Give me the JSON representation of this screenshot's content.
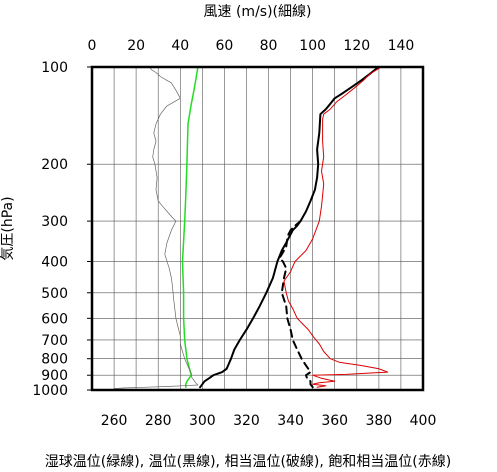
{
  "chart_data": {
    "type": "line",
    "title": "",
    "top_axis_label": "風速 (m/s)(細線)",
    "bottom_axis_label": "湿球温位(緑線), 温位(黒線), 相当温位(破線), 飽和相当温位(赤線)",
    "ylabel": "気圧(hPa)",
    "y_scale": "log",
    "y_inverted": true,
    "ylim": [
      1000,
      100
    ],
    "y_ticks": [
      100,
      200,
      300,
      400,
      500,
      600,
      700,
      800,
      900,
      1000
    ],
    "top_xlim": [
      0,
      150
    ],
    "top_x_ticks": [
      0,
      20,
      40,
      60,
      80,
      100,
      120,
      140
    ],
    "bottom_xlim": [
      250,
      400
    ],
    "bottom_x_ticks": [
      260,
      280,
      300,
      320,
      340,
      360,
      380,
      400
    ],
    "grid": true,
    "series": [
      {
        "name": "湿球温位",
        "axis": "bottom",
        "color": "#22dd22",
        "style": "solid",
        "width": 1.5,
        "points": [
          [
            292.5,
            980
          ],
          [
            292.5,
            960
          ],
          [
            293,
            940
          ],
          [
            294,
            920
          ],
          [
            295,
            900
          ],
          [
            294,
            850
          ],
          [
            293,
            800
          ],
          [
            292,
            700
          ],
          [
            291.5,
            600
          ],
          [
            291.5,
            500
          ],
          [
            291,
            400
          ],
          [
            292,
            300
          ],
          [
            292.5,
            250
          ],
          [
            293,
            200
          ],
          [
            293.5,
            150
          ],
          [
            295,
            130
          ],
          [
            296,
            120
          ],
          [
            297,
            110
          ],
          [
            298,
            100
          ]
        ]
      },
      {
        "name": "温位",
        "axis": "bottom",
        "color": "#000000",
        "style": "solid",
        "width": 2,
        "points": [
          [
            299,
            980
          ],
          [
            300,
            960
          ],
          [
            301,
            940
          ],
          [
            303,
            920
          ],
          [
            305,
            900
          ],
          [
            309,
            880
          ],
          [
            311,
            860
          ],
          [
            312,
            830
          ],
          [
            313,
            800
          ],
          [
            314.5,
            750
          ],
          [
            317,
            700
          ],
          [
            320,
            650
          ],
          [
            323,
            600
          ],
          [
            326,
            550
          ],
          [
            329,
            500
          ],
          [
            332,
            450
          ],
          [
            334,
            400
          ],
          [
            336,
            370
          ],
          [
            338,
            350
          ],
          [
            341,
            320
          ],
          [
            343,
            310
          ],
          [
            344.5,
            300
          ],
          [
            347,
            280
          ],
          [
            349,
            260
          ],
          [
            351,
            240
          ],
          [
            352,
            220
          ],
          [
            352.5,
            200
          ],
          [
            352,
            180
          ],
          [
            353,
            160
          ],
          [
            353.5,
            140
          ],
          [
            356,
            135
          ],
          [
            358,
            130
          ],
          [
            360,
            125
          ],
          [
            364,
            120
          ],
          [
            368,
            115
          ],
          [
            372,
            110
          ],
          [
            376,
            105
          ],
          [
            379,
            101
          ],
          [
            380,
            100
          ]
        ]
      },
      {
        "name": "相当温位",
        "axis": "bottom",
        "color": "#000000",
        "style": "dashed",
        "width": 2,
        "points": [
          [
            350,
            980
          ],
          [
            349,
            960
          ],
          [
            349,
            940
          ],
          [
            347.5,
            920
          ],
          [
            347,
            900
          ],
          [
            349,
            880
          ],
          [
            348,
            860
          ],
          [
            347,
            840
          ],
          [
            345,
            800
          ],
          [
            343,
            750
          ],
          [
            341,
            700
          ],
          [
            340,
            650
          ],
          [
            338.5,
            600
          ],
          [
            338,
            550
          ],
          [
            336,
            500
          ],
          [
            337,
            450
          ],
          [
            338,
            420
          ],
          [
            336.5,
            400
          ],
          [
            335,
            390
          ],
          [
            336,
            380
          ],
          [
            337,
            370
          ],
          [
            338,
            360
          ],
          [
            338.5,
            340
          ],
          [
            339,
            330
          ],
          [
            340,
            320
          ],
          [
            342,
            310
          ],
          [
            344.5,
            300
          ]
        ]
      },
      {
        "name": "飽和相当温位",
        "axis": "bottom",
        "color": "#dd0000",
        "style": "solid",
        "width": 1,
        "points": [
          [
            352,
            980
          ],
          [
            356,
            970
          ],
          [
            350,
            960
          ],
          [
            353,
            950
          ],
          [
            360,
            940
          ],
          [
            354,
            920
          ],
          [
            350,
            900
          ],
          [
            365,
            895
          ],
          [
            384,
            880
          ],
          [
            380,
            860
          ],
          [
            372,
            840
          ],
          [
            362,
            820
          ],
          [
            358,
            800
          ],
          [
            355,
            760
          ],
          [
            353,
            720
          ],
          [
            350,
            680
          ],
          [
            348,
            650
          ],
          [
            345,
            620
          ],
          [
            343,
            600
          ],
          [
            341,
            560
          ],
          [
            339,
            530
          ],
          [
            338,
            500
          ],
          [
            337,
            460
          ],
          [
            340,
            430
          ],
          [
            342,
            400
          ],
          [
            347,
            370
          ],
          [
            350,
            340
          ],
          [
            353,
            300
          ],
          [
            354,
            270
          ],
          [
            354.5,
            250
          ],
          [
            355,
            230
          ],
          [
            354,
            210
          ],
          [
            355,
            190
          ],
          [
            354.5,
            170
          ],
          [
            354.5,
            145
          ],
          [
            355,
            140
          ],
          [
            358,
            135
          ],
          [
            361,
            128
          ],
          [
            365,
            122
          ],
          [
            369,
            116
          ],
          [
            373,
            110
          ],
          [
            376,
            105
          ],
          [
            380,
            101
          ],
          [
            381,
            100
          ]
        ]
      },
      {
        "name": "風速",
        "axis": "top",
        "color": "#666666",
        "style": "solid",
        "width": 0.7,
        "points": [
          [
            10,
            990
          ],
          [
            15,
            985
          ],
          [
            25,
            980
          ],
          [
            35,
            975
          ],
          [
            42,
            970
          ],
          [
            48,
            965
          ],
          [
            47,
            950
          ],
          [
            46,
            930
          ],
          [
            45,
            910
          ],
          [
            45,
            890
          ],
          [
            44,
            860
          ],
          [
            43,
            830
          ],
          [
            42,
            800
          ],
          [
            41,
            760
          ],
          [
            40,
            720
          ],
          [
            40,
            680
          ],
          [
            39,
            640
          ],
          [
            38,
            600
          ],
          [
            37.5,
            560
          ],
          [
            37,
            520
          ],
          [
            36.5,
            480
          ],
          [
            36,
            450
          ],
          [
            35,
            420
          ],
          [
            33,
            380
          ],
          [
            34,
            350
          ],
          [
            36,
            320
          ],
          [
            38,
            300
          ],
          [
            36,
            290
          ],
          [
            34,
            280
          ],
          [
            32,
            270
          ],
          [
            30,
            260
          ],
          [
            29,
            240
          ],
          [
            29.5,
            220
          ],
          [
            28.5,
            200
          ],
          [
            27.5,
            190
          ],
          [
            28,
            180
          ],
          [
            29,
            170
          ],
          [
            28,
            160
          ],
          [
            29,
            150
          ],
          [
            31,
            140
          ],
          [
            34,
            132
          ],
          [
            40,
            125
          ],
          [
            38,
            118
          ],
          [
            36,
            112
          ],
          [
            34,
            110
          ],
          [
            31,
            107
          ],
          [
            29,
            104
          ],
          [
            27,
            102
          ],
          [
            26,
            100
          ]
        ]
      }
    ]
  }
}
